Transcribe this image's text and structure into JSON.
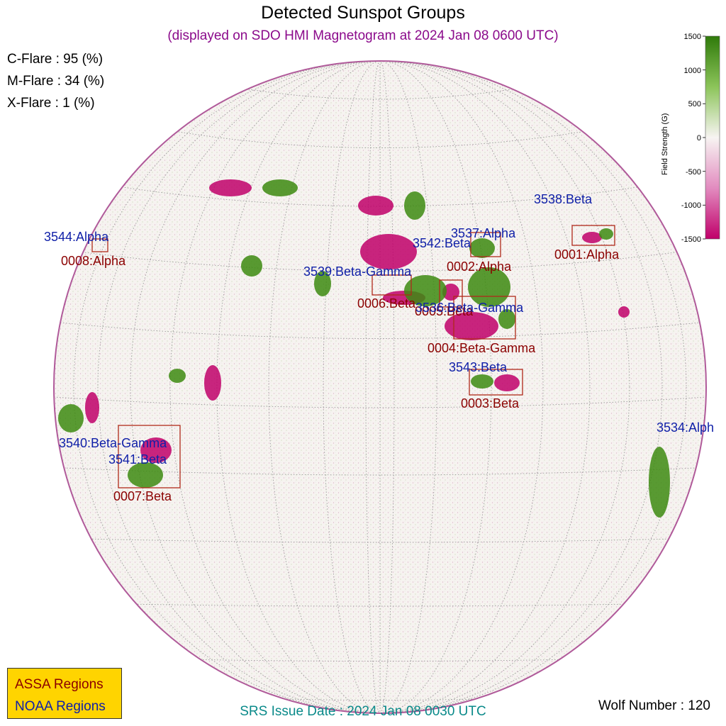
{
  "header": {
    "title": "Detected Sunspot Groups",
    "subtitle": "(displayed on SDO HMI Magnetogram at 2024 Jan 08 0600 UTC)"
  },
  "flare_probabilities": [
    {
      "label": "C-Flare : 95 (%)"
    },
    {
      "label": "M-Flare : 34 (%)"
    },
    {
      "label": "X-Flare :  1 (%)"
    }
  ],
  "colorbar": {
    "title": "Field Strength (G)",
    "ticks": [
      "1500",
      "1000",
      "500",
      "0",
      "-500",
      "-1000",
      "-1500"
    ],
    "colors": {
      "positive": "#2f7a0a",
      "zero": "#f7f4f2",
      "negative": "#c0006a"
    }
  },
  "noaa_regions": [
    {
      "label": "3544:Alpha"
    },
    {
      "label": "3538:Beta"
    },
    {
      "label": "3537:Alpha"
    },
    {
      "label": "3542:Beta"
    },
    {
      "label": "3539:Beta-Gamma"
    },
    {
      "label": "3536:Beta-Gamma"
    },
    {
      "label": "3543:Beta"
    },
    {
      "label": "3534:Alph"
    },
    {
      "label": "3540:Beta-Gamma"
    },
    {
      "label": "3541:Beta"
    }
  ],
  "assa_regions": [
    {
      "label": "0008:Alpha"
    },
    {
      "label": "0001:Alpha"
    },
    {
      "label": "0002:Alpha"
    },
    {
      "label": "0006:Beta"
    },
    {
      "label": "0005:Beta"
    },
    {
      "label": "0004:Beta-Gamma"
    },
    {
      "label": "0003:Beta"
    },
    {
      "label": "0007:Beta"
    }
  ],
  "legend": {
    "assa_label": "ASSA Regions",
    "noaa_label": "NOAA Regions",
    "assa_color": "#8b0000",
    "noaa_color": "#1020a8",
    "background": "#ffd400"
  },
  "footer": {
    "issue_date": "SRS Issue Date : 2024 Jan 08 0030 UTC",
    "wolf_number": "Wolf Number : 120"
  }
}
